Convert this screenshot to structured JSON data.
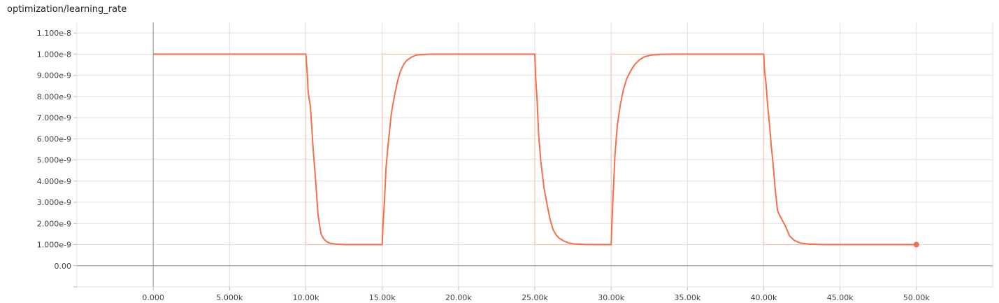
{
  "chart_data": {
    "type": "line",
    "title": "optimization/learning_rate",
    "xlim": [
      -5000,
      55000
    ],
    "ylim": [
      -1e-09,
      1.15e-08
    ],
    "x_ticks": [
      0,
      5000,
      10000,
      15000,
      20000,
      25000,
      30000,
      35000,
      40000,
      45000,
      50000
    ],
    "x_tick_labels": [
      "0.000",
      "5.000k",
      "10.00k",
      "15.00k",
      "20.00k",
      "25.00k",
      "30.00k",
      "35.00k",
      "40.00k",
      "45.00k",
      "50.00k"
    ],
    "y_ticks": [
      0,
      1e-09,
      2e-09,
      3e-09,
      4e-09,
      5e-09,
      6e-09,
      7e-09,
      8e-09,
      9e-09,
      1e-08,
      1.1e-08
    ],
    "y_tick_labels": [
      "0.00",
      "1.000e-9",
      "2.000e-9",
      "3.000e-9",
      "4.000e-9",
      "5.000e-9",
      "6.000e-9",
      "7.000e-9",
      "8.000e-9",
      "9.000e-9",
      "1.000e-8",
      "1.100e-8"
    ],
    "grid": true,
    "colors": {
      "smoothed": "#f4704a",
      "raw": "#f9c2b2"
    },
    "series": [
      {
        "style": "raw",
        "x": [
          0,
          10000,
          10000,
          15000,
          15000,
          25000,
          25000,
          30000,
          30000,
          40000,
          40000,
          50000
        ],
        "y": [
          1e-08,
          1e-08,
          1e-09,
          1e-09,
          1e-08,
          1e-08,
          1e-09,
          1e-09,
          1e-08,
          1e-08,
          1e-09,
          1e-09
        ]
      },
      {
        "style": "smoothed",
        "x": [
          0,
          10000,
          10100,
          10150,
          10300,
          10400,
          10500,
          10600,
          10700,
          10800,
          10900,
          11000,
          11100,
          11200,
          11400,
          11600,
          12000,
          12500,
          13000,
          14000,
          15000,
          15050,
          15150,
          15250,
          15400,
          15600,
          15800,
          16000,
          16200,
          16400,
          16600,
          16900,
          17200,
          17600,
          18200,
          19000,
          20000,
          25000,
          25050,
          25150,
          25250,
          25400,
          25600,
          25800,
          26000,
          26200,
          26400,
          26600,
          26900,
          27200,
          27600,
          28200,
          29000,
          30000,
          30050,
          30150,
          30250,
          30400,
          30600,
          30800,
          31000,
          31200,
          31400,
          31600,
          31900,
          32200,
          32600,
          33200,
          34000,
          35000,
          40000,
          40050,
          40150,
          40250,
          40400,
          40500,
          40600,
          40750,
          40900,
          41100,
          41400,
          41700,
          42000,
          42400,
          43000,
          44000,
          50000
        ],
        "y": [
          1e-08,
          1e-08,
          9e-09,
          8.2e-09,
          7.5e-09,
          6.4e-09,
          5.3e-09,
          4.4e-09,
          3.4e-09,
          2.4e-09,
          1.9e-09,
          1.5e-09,
          1.35e-09,
          1.25e-09,
          1.12e-09,
          1.06e-09,
          1.02e-09,
          1e-09,
          1e-09,
          1e-09,
          1e-09,
          1.9e-09,
          3e-09,
          4.6e-09,
          5.8e-09,
          7.2e-09,
          8e-09,
          8.7e-09,
          9.2e-09,
          9.5e-09,
          9.7e-09,
          9.85e-09,
          9.95e-09,
          9.98e-09,
          1e-08,
          1e-08,
          1e-08,
          1e-08,
          9e-09,
          7.8e-09,
          6.2e-09,
          4.9e-09,
          3.7e-09,
          2.9e-09,
          2.2e-09,
          1.7e-09,
          1.45e-09,
          1.3e-09,
          1.17e-09,
          1.08e-09,
          1.03e-09,
          1.01e-09,
          1e-09,
          1e-09,
          2e-09,
          3.6e-09,
          5.2e-09,
          6.6e-09,
          7.6e-09,
          8.3e-09,
          8.8e-09,
          9.1e-09,
          9.35e-09,
          9.55e-09,
          9.75e-09,
          9.88e-09,
          9.95e-09,
          9.99e-09,
          1e-08,
          1e-08,
          1e-08,
          9.2e-09,
          8.6e-09,
          7.6e-09,
          6.5e-09,
          5.6e-09,
          4.9e-09,
          3.6e-09,
          2.6e-09,
          2.3e-09,
          1.9e-09,
          1.4e-09,
          1.2e-09,
          1.07e-09,
          1.02e-09,
          1e-09,
          1e-09
        ]
      }
    ],
    "end_marker": {
      "x": 50000,
      "y": 1e-09
    }
  }
}
